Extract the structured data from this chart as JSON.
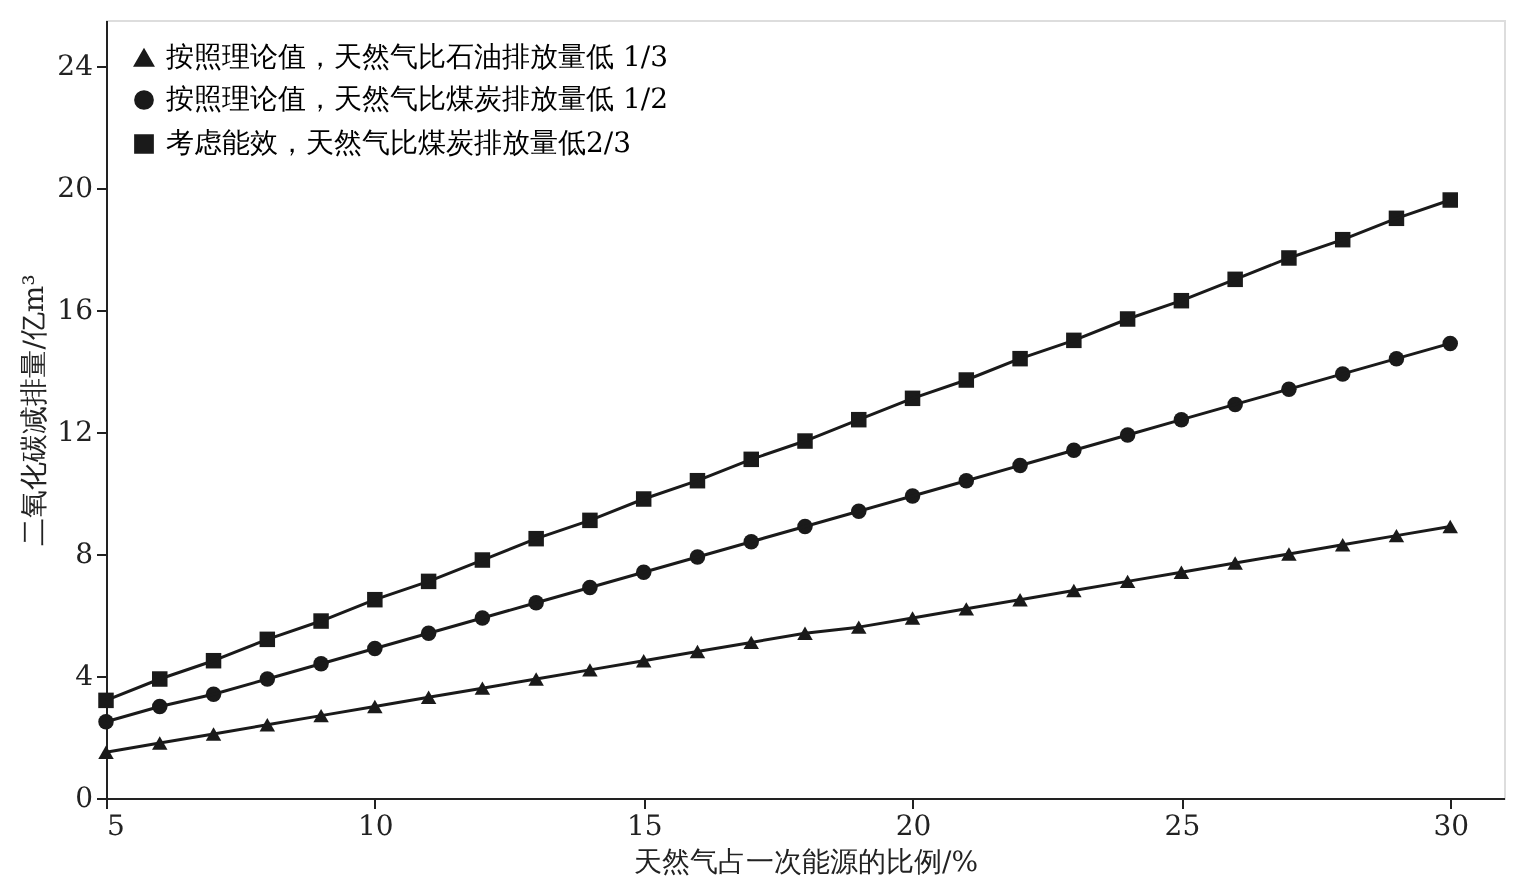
{
  "chart_data": {
    "type": "line",
    "xlabel": "天然气占一次能源的比例/%",
    "ylabel": "二氧化碳减排量/亿m³",
    "x": [
      5,
      6,
      7,
      8,
      9,
      10,
      11,
      12,
      13,
      14,
      15,
      16,
      17,
      18,
      19,
      20,
      21,
      22,
      23,
      24,
      25,
      26,
      27,
      28,
      29,
      30
    ],
    "series": [
      {
        "name": "按照理论值，天然气比石油排放量低 1/3",
        "color": "#1a1a1a",
        "marker": "triangle",
        "values": [
          1.5,
          1.8,
          2.1,
          2.4,
          2.7,
          3.0,
          3.3,
          3.6,
          3.9,
          4.2,
          4.5,
          4.8,
          5.1,
          5.4,
          5.6,
          5.9,
          6.2,
          6.5,
          6.8,
          7.1,
          7.4,
          7.7,
          8.0,
          8.3,
          8.6,
          8.9
        ]
      },
      {
        "name": "按照理论值，天然气比煤炭排放量低 1/2",
        "color": "#1a1a1a",
        "marker": "circle",
        "values": [
          2.5,
          3.0,
          3.4,
          3.9,
          4.4,
          4.9,
          5.4,
          5.9,
          6.4,
          6.9,
          7.4,
          7.9,
          8.4,
          8.9,
          9.4,
          9.9,
          10.4,
          10.9,
          11.4,
          11.9,
          12.4,
          12.9,
          13.4,
          13.9,
          14.4,
          14.9
        ]
      },
      {
        "name": "考虑能效，天然气比煤炭排放量低2/3",
        "color": "#1a1a1a",
        "marker": "square",
        "values": [
          3.2,
          3.9,
          4.5,
          5.2,
          5.8,
          6.5,
          7.1,
          7.8,
          8.5,
          9.1,
          9.8,
          10.4,
          11.1,
          11.7,
          12.4,
          13.1,
          13.7,
          14.4,
          15.0,
          15.7,
          16.3,
          17.0,
          17.7,
          18.3,
          19.0,
          19.6
        ]
      }
    ],
    "xlim": [
      5,
      31
    ],
    "xticks": [
      5,
      10,
      15,
      20,
      25,
      30
    ],
    "ylim": [
      0,
      25.5
    ],
    "yticks": [
      0,
      4,
      8,
      12,
      16,
      20,
      24
    ],
    "grid": false,
    "legend": "top left",
    "line_style": "solid"
  }
}
